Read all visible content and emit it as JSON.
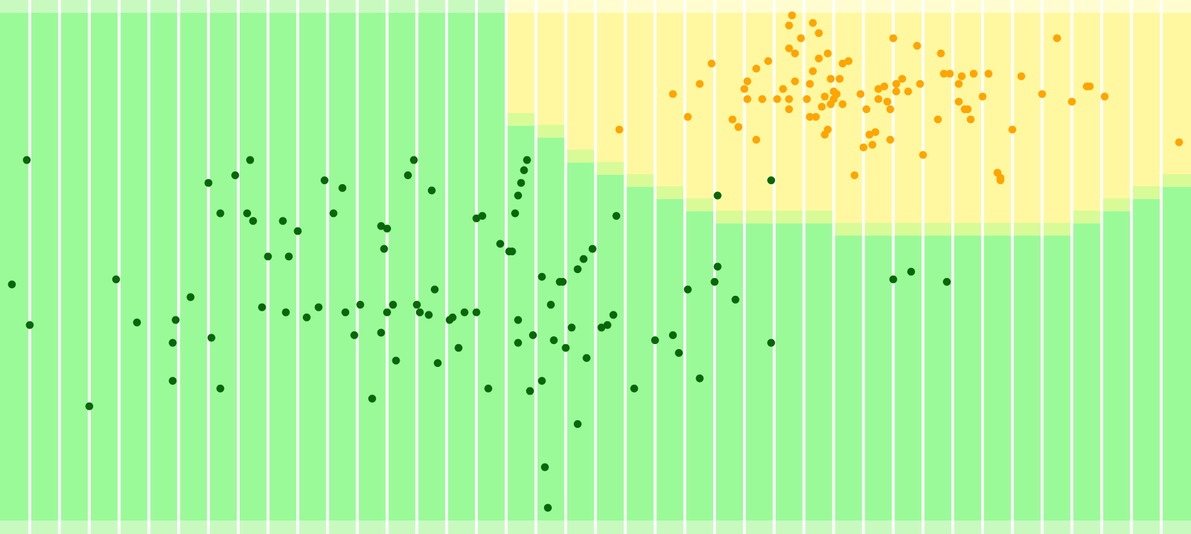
{
  "chart_data": {
    "type": "scatter",
    "title": "",
    "xlabel": "",
    "ylabel": "",
    "xlim": [
      0,
      40
    ],
    "ylim": [
      0,
      20
    ],
    "grid": false,
    "colors": {
      "class_a_region": "#9afa98",
      "class_a_region_light": "#c8fac0",
      "class_b_region": "#fff8a0",
      "class_b_region_light": "#fffdd0",
      "boundary_band": "#d8fb98",
      "class_a_points": "#0a660a",
      "class_b_points": "#ffa500",
      "separator": "#ffffff"
    },
    "columns": [
      {
        "label_free": true,
        "boundary_y": 20.0
      },
      {
        "label_free": true,
        "boundary_y": 20.0
      },
      {
        "label_free": true,
        "boundary_y": 20.0
      },
      {
        "label_free": true,
        "boundary_y": 20.0
      },
      {
        "label_free": true,
        "boundary_y": 20.0
      },
      {
        "label_free": true,
        "boundary_y": 20.0
      },
      {
        "label_free": true,
        "boundary_y": 20.0
      },
      {
        "label_free": true,
        "boundary_y": 20.0
      },
      {
        "label_free": true,
        "boundary_y": 20.0
      },
      {
        "label_free": true,
        "boundary_y": 20.0
      },
      {
        "label_free": true,
        "boundary_y": 20.0
      },
      {
        "label_free": true,
        "boundary_y": 20.0
      },
      {
        "label_free": true,
        "boundary_y": 20.0
      },
      {
        "label_free": true,
        "boundary_y": 20.0
      },
      {
        "label_free": true,
        "boundary_y": 20.0
      },
      {
        "label_free": true,
        "boundary_y": 20.0
      },
      {
        "label_free": true,
        "boundary_y": 20.0
      },
      {
        "label_free": true,
        "boundary_y": 15.55
      },
      {
        "label_free": true,
        "boundary_y": 15.08
      },
      {
        "label_free": true,
        "boundary_y": 14.1
      },
      {
        "label_free": true,
        "boundary_y": 13.62
      },
      {
        "label_free": true,
        "boundary_y": 13.14
      },
      {
        "label_free": true,
        "boundary_y": 12.66
      },
      {
        "label_free": true,
        "boundary_y": 12.18
      },
      {
        "label_free": true,
        "boundary_y": 11.7
      },
      {
        "label_free": true,
        "boundary_y": 11.7
      },
      {
        "label_free": true,
        "boundary_y": 11.7
      },
      {
        "label_free": true,
        "boundary_y": 11.7
      },
      {
        "label_free": true,
        "boundary_y": 11.22
      },
      {
        "label_free": true,
        "boundary_y": 11.22
      },
      {
        "label_free": true,
        "boundary_y": 11.22
      },
      {
        "label_free": true,
        "boundary_y": 11.22
      },
      {
        "label_free": true,
        "boundary_y": 11.22
      },
      {
        "label_free": true,
        "boundary_y": 11.22
      },
      {
        "label_free": true,
        "boundary_y": 11.22
      },
      {
        "label_free": true,
        "boundary_y": 11.22
      },
      {
        "label_free": true,
        "boundary_y": 11.7
      },
      {
        "label_free": true,
        "boundary_y": 12.18
      },
      {
        "label_free": true,
        "boundary_y": 12.66
      },
      {
        "label_free": true,
        "boundary_y": 13.14
      }
    ],
    "series": [
      {
        "class": "A",
        "points": [
          [
            0.4,
            9.3
          ],
          [
            0.9,
            14.2
          ],
          [
            1.0,
            7.7
          ],
          [
            3.0,
            4.5
          ],
          [
            3.9,
            9.5
          ],
          [
            4.6,
            7.8
          ],
          [
            5.8,
            5.5
          ],
          [
            5.8,
            7.0
          ],
          [
            5.9,
            7.9
          ],
          [
            6.4,
            8.8
          ],
          [
            7.0,
            13.3
          ],
          [
            7.1,
            7.2
          ],
          [
            7.4,
            12.1
          ],
          [
            7.4,
            5.2
          ],
          [
            7.9,
            13.6
          ],
          [
            8.3,
            12.1
          ],
          [
            8.4,
            14.2
          ],
          [
            8.5,
            11.8
          ],
          [
            8.8,
            8.4
          ],
          [
            9.0,
            10.4
          ],
          [
            9.5,
            11.8
          ],
          [
            9.6,
            8.2
          ],
          [
            9.7,
            10.4
          ],
          [
            10.0,
            11.4
          ],
          [
            10.3,
            8.0
          ],
          [
            10.7,
            8.4
          ],
          [
            10.9,
            13.4
          ],
          [
            11.2,
            12.1
          ],
          [
            11.5,
            13.1
          ],
          [
            11.6,
            8.2
          ],
          [
            11.9,
            7.3
          ],
          [
            12.1,
            8.5
          ],
          [
            12.5,
            4.8
          ],
          [
            12.8,
            11.6
          ],
          [
            12.8,
            7.4
          ],
          [
            12.9,
            10.7
          ],
          [
            13.0,
            11.5
          ],
          [
            13.0,
            8.2
          ],
          [
            13.2,
            8.5
          ],
          [
            13.3,
            6.3
          ],
          [
            13.7,
            13.6
          ],
          [
            13.9,
            14.2
          ],
          [
            14.0,
            8.5
          ],
          [
            14.1,
            8.2
          ],
          [
            14.4,
            8.1
          ],
          [
            14.5,
            13.0
          ],
          [
            14.6,
            9.1
          ],
          [
            14.7,
            6.2
          ],
          [
            15.1,
            7.9
          ],
          [
            15.2,
            8.0
          ],
          [
            15.4,
            6.8
          ],
          [
            15.6,
            8.2
          ],
          [
            16.0,
            11.9
          ],
          [
            16.2,
            12.0
          ],
          [
            16.4,
            5.2
          ],
          [
            16.0,
            8.2
          ],
          [
            16.8,
            10.9
          ],
          [
            17.1,
            10.6
          ],
          [
            17.2,
            10.6
          ],
          [
            17.3,
            12.1
          ],
          [
            17.4,
            7.9
          ],
          [
            17.4,
            7.0
          ],
          [
            17.4,
            12.8
          ],
          [
            17.5,
            13.3
          ],
          [
            17.6,
            13.8
          ],
          [
            17.7,
            14.2
          ],
          [
            17.8,
            5.1
          ],
          [
            17.9,
            7.3
          ],
          [
            18.2,
            9.6
          ],
          [
            18.2,
            5.5
          ],
          [
            18.3,
            2.1
          ],
          [
            18.4,
            0.5
          ],
          [
            18.5,
            8.5
          ],
          [
            18.6,
            7.1
          ],
          [
            18.8,
            9.4
          ],
          [
            18.9,
            9.4
          ],
          [
            19.0,
            6.8
          ],
          [
            19.2,
            7.6
          ],
          [
            19.4,
            3.8
          ],
          [
            19.4,
            9.9
          ],
          [
            19.6,
            10.3
          ],
          [
            19.7,
            6.4
          ],
          [
            19.9,
            10.7
          ],
          [
            20.2,
            7.6
          ],
          [
            20.4,
            7.7
          ],
          [
            20.6,
            8.1
          ],
          [
            20.7,
            12.0
          ],
          [
            21.3,
            5.2
          ],
          [
            22.0,
            7.1
          ],
          [
            22.6,
            7.3
          ],
          [
            22.8,
            6.6
          ],
          [
            23.1,
            9.1
          ],
          [
            23.5,
            5.6
          ],
          [
            24.0,
            9.4
          ],
          [
            24.1,
            10.0
          ],
          [
            24.1,
            12.8
          ],
          [
            24.7,
            8.7
          ],
          [
            25.9,
            7.0
          ],
          [
            25.9,
            13.4
          ],
          [
            30.0,
            9.5
          ],
          [
            30.6,
            9.8
          ],
          [
            31.8,
            9.4
          ]
        ]
      },
      {
        "class": "B",
        "points": [
          [
            20.8,
            15.4
          ],
          [
            22.6,
            16.8
          ],
          [
            23.1,
            15.9
          ],
          [
            23.5,
            17.2
          ],
          [
            23.9,
            18.0
          ],
          [
            24.6,
            15.8
          ],
          [
            24.8,
            15.5
          ],
          [
            25.0,
            17.0
          ],
          [
            25.1,
            17.3
          ],
          [
            25.1,
            16.6
          ],
          [
            25.4,
            15.0
          ],
          [
            25.4,
            17.8
          ],
          [
            25.6,
            16.6
          ],
          [
            25.8,
            18.1
          ],
          [
            26.1,
            16.6
          ],
          [
            26.3,
            17.0
          ],
          [
            26.5,
            16.6
          ],
          [
            26.5,
            16.2
          ],
          [
            26.5,
            18.6
          ],
          [
            26.5,
            19.5
          ],
          [
            26.6,
            19.9
          ],
          [
            26.7,
            17.3
          ],
          [
            26.7,
            18.4
          ],
          [
            26.9,
            19.0
          ],
          [
            27.1,
            16.6
          ],
          [
            27.2,
            17.2
          ],
          [
            27.2,
            15.9
          ],
          [
            27.3,
            17.7
          ],
          [
            27.3,
            19.6
          ],
          [
            27.4,
            15.9
          ],
          [
            27.5,
            18.2
          ],
          [
            27.5,
            19.2
          ],
          [
            27.6,
            16.3
          ],
          [
            27.7,
            15.2
          ],
          [
            27.7,
            16.7
          ],
          [
            27.8,
            15.4
          ],
          [
            27.8,
            18.4
          ],
          [
            27.9,
            17.4
          ],
          [
            27.9,
            16.4
          ],
          [
            28.0,
            16.6
          ],
          [
            28.0,
            16.9
          ],
          [
            28.1,
            16.8
          ],
          [
            28.2,
            17.4
          ],
          [
            28.3,
            18.0
          ],
          [
            28.3,
            16.4
          ],
          [
            28.5,
            18.1
          ],
          [
            28.7,
            13.6
          ],
          [
            28.9,
            16.8
          ],
          [
            29.0,
            14.7
          ],
          [
            29.1,
            16.2
          ],
          [
            29.2,
            15.2
          ],
          [
            29.3,
            14.8
          ],
          [
            29.4,
            15.3
          ],
          [
            29.5,
            17.0
          ],
          [
            29.5,
            16.6
          ],
          [
            29.7,
            17.1
          ],
          [
            29.8,
            16.5
          ],
          [
            29.9,
            15.0
          ],
          [
            29.9,
            16.2
          ],
          [
            30.0,
            19.0
          ],
          [
            30.1,
            16.9
          ],
          [
            30.1,
            17.2
          ],
          [
            30.3,
            17.4
          ],
          [
            30.5,
            16.9
          ],
          [
            30.8,
            18.7
          ],
          [
            30.9,
            17.2
          ],
          [
            31.0,
            14.4
          ],
          [
            31.5,
            15.8
          ],
          [
            31.6,
            18.4
          ],
          [
            31.7,
            17.6
          ],
          [
            31.9,
            17.6
          ],
          [
            32.2,
            17.2
          ],
          [
            32.2,
            16.5
          ],
          [
            32.3,
            17.5
          ],
          [
            32.4,
            16.2
          ],
          [
            32.5,
            16.2
          ],
          [
            32.6,
            15.8
          ],
          [
            32.7,
            17.6
          ],
          [
            33.0,
            16.7
          ],
          [
            33.2,
            17.6
          ],
          [
            33.5,
            13.7
          ],
          [
            33.6,
            13.4
          ],
          [
            33.6,
            13.5
          ],
          [
            34.0,
            15.4
          ],
          [
            34.3,
            17.5
          ],
          [
            35.0,
            16.8
          ],
          [
            35.5,
            19.0
          ],
          [
            36.0,
            16.5
          ],
          [
            36.5,
            17.1
          ],
          [
            36.6,
            17.1
          ],
          [
            37.1,
            16.7
          ],
          [
            39.6,
            14.9
          ]
        ]
      }
    ]
  }
}
